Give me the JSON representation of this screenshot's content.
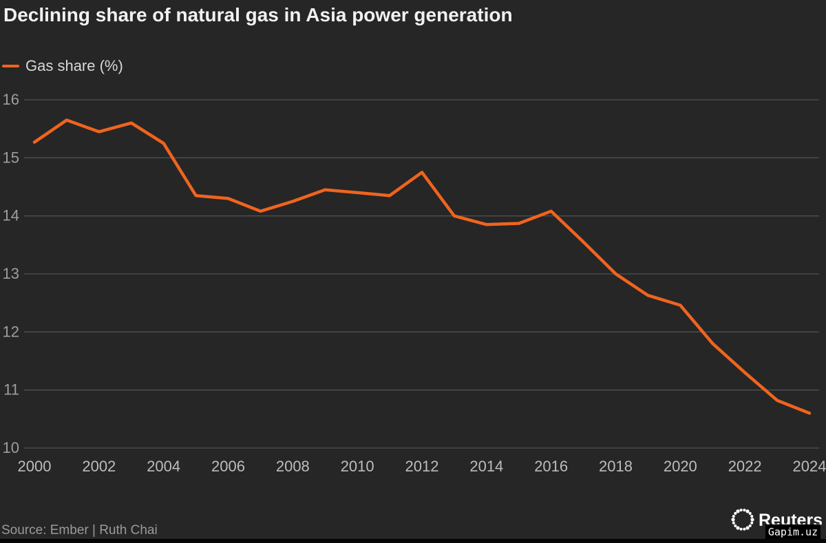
{
  "title": "Declining share of natural gas in Asia power generation",
  "legend": {
    "label": "Gas share (%)"
  },
  "source": "Source: Ember | Ruth Chai",
  "logo": {
    "text": "Reuters"
  },
  "watermark": "Gapim.uz",
  "colors": {
    "background": "#262626",
    "line": "#f0641e",
    "grid": "#505050",
    "y_tick_text": "#9e9e9e",
    "x_tick_text": "#bdbdbd",
    "title_text": "#f1f1f1",
    "legend_text": "#d8d8d8",
    "source_text": "#9a9a9a"
  },
  "chart_data": {
    "type": "line",
    "title": "Declining share of natural gas in Asia power generation",
    "xlabel": "",
    "ylabel": "",
    "grid": "horizontal",
    "legend_position": "top-left",
    "ylim": [
      10,
      16
    ],
    "y_ticks": [
      10,
      11,
      12,
      13,
      14,
      15,
      16
    ],
    "x_ticks": [
      2000,
      2002,
      2004,
      2006,
      2008,
      2010,
      2012,
      2014,
      2016,
      2018,
      2020,
      2022,
      2024
    ],
    "x": [
      2000,
      2001,
      2002,
      2003,
      2004,
      2005,
      2006,
      2007,
      2008,
      2009,
      2010,
      2011,
      2012,
      2013,
      2014,
      2015,
      2016,
      2017,
      2018,
      2019,
      2020,
      2021,
      2022,
      2023,
      2024
    ],
    "series": [
      {
        "name": "Gas share (%)",
        "values": [
          15.27,
          15.65,
          15.45,
          15.6,
          15.25,
          14.35,
          14.3,
          14.08,
          14.25,
          14.45,
          14.4,
          14.35,
          14.75,
          14.0,
          13.85,
          13.87,
          14.08,
          13.55,
          13.0,
          12.63,
          12.46,
          11.8,
          11.3,
          10.82,
          10.6
        ]
      }
    ]
  }
}
